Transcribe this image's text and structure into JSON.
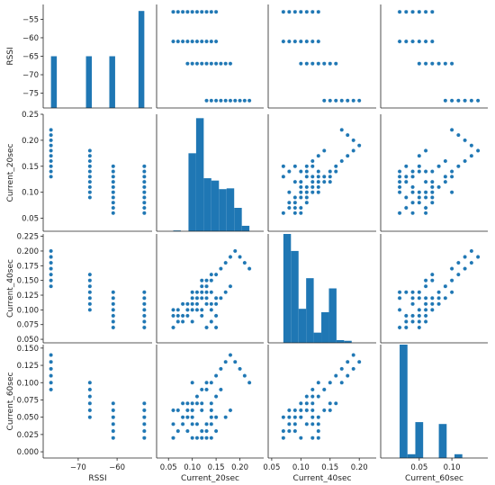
{
  "chart_data": {
    "type": "scatter",
    "variables": [
      "RSSI",
      "Current_20sec",
      "Current_40sec",
      "Current_60sec"
    ],
    "axes": {
      "RSSI": {
        "lim": [
          -79,
          -51
        ],
        "ticks": [
          -75,
          -70,
          -65,
          -60,
          -55
        ],
        "tick_labels": [
          "−75",
          "−70",
          "−65",
          "−60",
          "−55"
        ],
        "xticks": [
          -70,
          -60
        ],
        "xtick_labels": [
          "−70",
          "−60"
        ]
      },
      "Current_20sec": {
        "lim": [
          0.025,
          0.25
        ],
        "ticks": [
          0.05,
          0.1,
          0.15,
          0.2,
          0.25
        ],
        "tick_labels": [
          "0.05",
          "0.10",
          "0.15",
          "0.20",
          "0.25"
        ],
        "xticks": [
          0.05,
          0.1,
          0.15,
          0.2
        ],
        "xtick_labels": [
          "0.05",
          "0.10",
          "0.15",
          "0.20"
        ]
      },
      "Current_40sec": {
        "lim": [
          0.044,
          0.229
        ],
        "ticks": [
          0.05,
          0.075,
          0.1,
          0.125,
          0.15,
          0.175,
          0.2,
          0.225
        ],
        "tick_labels": [
          "0.050",
          "0.075",
          "0.100",
          "0.125",
          "0.150",
          "0.175",
          "0.200",
          "0.225"
        ],
        "xticks": [
          0.05,
          0.1,
          0.15,
          0.2
        ],
        "xtick_labels": [
          "0.05",
          "0.10",
          "0.15",
          "0.20"
        ]
      },
      "Current_60sec": {
        "lim": [
          -0.009,
          0.155
        ],
        "ticks": [
          0.0,
          0.025,
          0.05,
          0.075,
          0.1,
          0.125,
          0.15
        ],
        "tick_labels": [
          "0.000",
          "0.025",
          "0.050",
          "0.075",
          "0.100",
          "0.125",
          "0.150"
        ],
        "xticks": [
          0.05,
          0.1
        ],
        "xtick_labels": [
          "0.05",
          "0.10"
        ]
      }
    },
    "histograms": {
      "RSSI": {
        "edges": [
          -77.0,
          -75.5,
          -74.0,
          -72.5,
          -71.0,
          -69.5,
          -68.0,
          -66.5,
          -65.0,
          -63.5,
          -62.0,
          -60.5,
          -59.0,
          -57.5,
          -56.0,
          -54.5,
          -53.0
        ],
        "counts": [
          80,
          0,
          0,
          0,
          0,
          0,
          80,
          0,
          0,
          0,
          80,
          0,
          0,
          0,
          0,
          150
        ],
        "ylim": [
          0,
          160
        ]
      },
      "Current_20sec": {
        "edges": [
          0.06,
          0.076,
          0.092,
          0.108,
          0.124,
          0.14,
          0.156,
          0.172,
          0.188,
          0.204,
          0.22
        ],
        "counts": [
          1,
          0,
          100,
          145,
          68,
          65,
          54,
          55,
          30,
          7
        ],
        "ylim": [
          0,
          150
        ]
      },
      "Current_40sec": {
        "edges": [
          0.07,
          0.083,
          0.096,
          0.109,
          0.122,
          0.135,
          0.148,
          0.161,
          0.174,
          0.187,
          0.2
        ],
        "counts": [
          160,
          135,
          50,
          95,
          15,
          45,
          80,
          4,
          3,
          0
        ],
        "ylim": [
          0,
          160
        ]
      },
      "Current_60sec": {
        "edges": [
          0.02,
          0.032,
          0.044,
          0.056,
          0.068,
          0.08,
          0.092,
          0.104,
          0.116,
          0.128,
          0.14
        ],
        "counts": [
          120,
          4,
          38,
          0,
          0,
          36,
          0,
          4,
          0,
          0
        ],
        "ylim": [
          0,
          120
        ]
      }
    },
    "points": {
      "RSSI": [
        -77,
        -77,
        -77,
        -77,
        -77,
        -77,
        -77,
        -77,
        -77,
        -77,
        -67,
        -67,
        -67,
        -67,
        -67,
        -67,
        -67,
        -67,
        -67,
        -67,
        -67,
        -67,
        -67,
        -67,
        -67,
        -67,
        -61,
        -61,
        -61,
        -61,
        -61,
        -61,
        -61,
        -61,
        -61,
        -61,
        -61,
        -61,
        -61,
        -61,
        -61,
        -61,
        -61,
        -61,
        -61,
        -61,
        -61,
        -61,
        -61,
        -61,
        -61,
        -61,
        -53,
        -53,
        -53,
        -53,
        -53,
        -53,
        -53,
        -53,
        -53,
        -53,
        -53,
        -53,
        -53,
        -53,
        -53,
        -53,
        -53,
        -53,
        -53,
        -53,
        -53,
        -53,
        -53,
        -53,
        -53,
        -53,
        -53,
        -53
      ],
      "Current_20sec": [
        0.13,
        0.14,
        0.15,
        0.16,
        0.17,
        0.18,
        0.19,
        0.2,
        0.21,
        0.22,
        0.09,
        0.1,
        0.1,
        0.11,
        0.12,
        0.13,
        0.14,
        0.15,
        0.16,
        0.17,
        0.18,
        0.12,
        0.15,
        0.1,
        0.13,
        0.14,
        0.06,
        0.07,
        0.08,
        0.09,
        0.1,
        0.11,
        0.12,
        0.13,
        0.14,
        0.15,
        0.07,
        0.09,
        0.11,
        0.13,
        0.1,
        0.12,
        0.14,
        0.08,
        0.1,
        0.12,
        0.14,
        0.15,
        0.09,
        0.11,
        0.13,
        0.1,
        0.06,
        0.07,
        0.08,
        0.09,
        0.1,
        0.11,
        0.12,
        0.13,
        0.14,
        0.15,
        0.06,
        0.08,
        0.1,
        0.12,
        0.14,
        0.07,
        0.09,
        0.11,
        0.13,
        0.15,
        0.08,
        0.1,
        0.12,
        0.14,
        0.06,
        0.09,
        0.12,
        0.15
      ],
      "Current_40sec": [
        0.14,
        0.15,
        0.16,
        0.17,
        0.18,
        0.19,
        0.2,
        0.19,
        0.18,
        0.17,
        0.1,
        0.11,
        0.12,
        0.13,
        0.14,
        0.15,
        0.16,
        0.11,
        0.12,
        0.13,
        0.14,
        0.15,
        0.12,
        0.13,
        0.14,
        0.15,
        0.07,
        0.08,
        0.09,
        0.1,
        0.11,
        0.12,
        0.13,
        0.07,
        0.08,
        0.09,
        0.1,
        0.11,
        0.12,
        0.13,
        0.08,
        0.09,
        0.1,
        0.11,
        0.12,
        0.1,
        0.11,
        0.12,
        0.09,
        0.1,
        0.11,
        0.13,
        0.07,
        0.08,
        0.09,
        0.1,
        0.11,
        0.12,
        0.13,
        0.07,
        0.08,
        0.09,
        0.1,
        0.11,
        0.12,
        0.13,
        0.08,
        0.09,
        0.1,
        0.11,
        0.12,
        0.07,
        0.08,
        0.1,
        0.12,
        0.13,
        0.09,
        0.11,
        0.13,
        0.07
      ],
      "Current_60sec": [
        0.09,
        0.1,
        0.11,
        0.12,
        0.13,
        0.14,
        0.13,
        0.12,
        0.11,
        0.1,
        0.05,
        0.06,
        0.07,
        0.08,
        0.09,
        0.1,
        0.07,
        0.08,
        0.09,
        0.05,
        0.06,
        0.07,
        0.08,
        0.1,
        0.09,
        0.06,
        0.02,
        0.03,
        0.04,
        0.05,
        0.06,
        0.07,
        0.02,
        0.03,
        0.04,
        0.05,
        0.06,
        0.07,
        0.02,
        0.04,
        0.06,
        0.03,
        0.05,
        0.07,
        0.04,
        0.02,
        0.06,
        0.05,
        0.03,
        0.07,
        0.04,
        0.05,
        0.02,
        0.03,
        0.04,
        0.05,
        0.06,
        0.07,
        0.02,
        0.03,
        0.04,
        0.05,
        0.06,
        0.07,
        0.02,
        0.03,
        0.05,
        0.06,
        0.07,
        0.04,
        0.02,
        0.03,
        0.05,
        0.07,
        0.06,
        0.02,
        0.04,
        0.06,
        0.03,
        0.05
      ]
    },
    "grid": false,
    "legend": "none"
  }
}
